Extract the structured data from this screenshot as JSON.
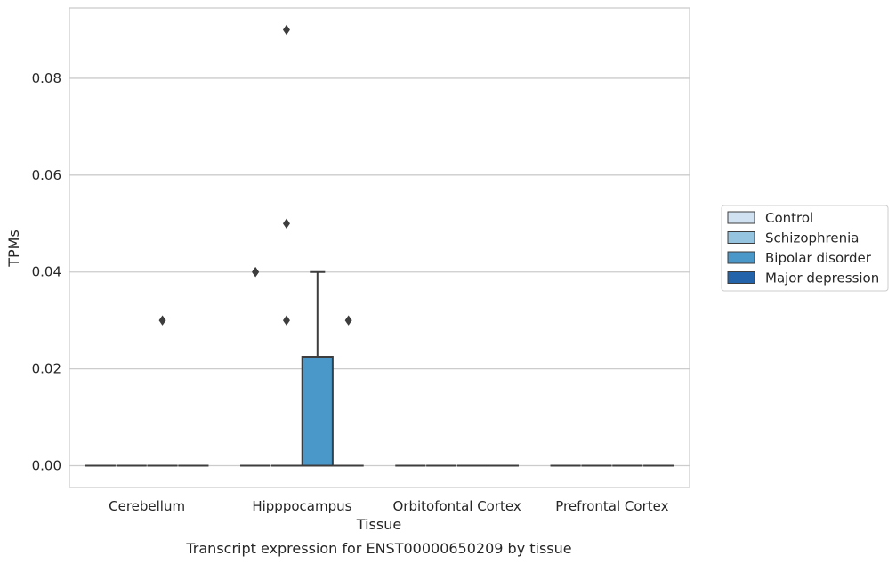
{
  "chart_data": {
    "type": "box",
    "caption": "Transcript expression for ENST00000650209 by tissue",
    "xlabel": "Tissue",
    "ylabel": "TPMs",
    "ylim": [
      -0.0045,
      0.0945
    ],
    "yticks": [
      0.0,
      0.02,
      0.04,
      0.06,
      0.08
    ],
    "ytick_labels": [
      "0.00",
      "0.02",
      "0.04",
      "0.06",
      "0.08"
    ],
    "grid": true,
    "legend_position": "right",
    "categories": [
      "Cerebellum",
      "Hipppocampus",
      "Orbitofontal Cortex",
      "Prefrontal Cortex"
    ],
    "groups": [
      {
        "name": "Control",
        "color": "#d0e1f2"
      },
      {
        "name": "Schizophrenia",
        "color": "#94c4df"
      },
      {
        "name": "Bipolar disorder",
        "color": "#4a98c9"
      },
      {
        "name": "Major depression",
        "color": "#2363aa"
      }
    ],
    "boxes": [
      {
        "category": 0,
        "group": 0,
        "q1": 0,
        "median": 0,
        "q3": 0,
        "whislo": 0,
        "whishi": 0,
        "fliers": []
      },
      {
        "category": 0,
        "group": 1,
        "q1": 0,
        "median": 0,
        "q3": 0,
        "whislo": 0,
        "whishi": 0,
        "fliers": []
      },
      {
        "category": 0,
        "group": 2,
        "q1": 0,
        "median": 0,
        "q3": 0,
        "whislo": 0,
        "whishi": 0,
        "fliers": [
          0.03
        ]
      },
      {
        "category": 0,
        "group": 3,
        "q1": 0,
        "median": 0,
        "q3": 0,
        "whislo": 0,
        "whishi": 0,
        "fliers": []
      },
      {
        "category": 1,
        "group": 0,
        "q1": 0,
        "median": 0,
        "q3": 0,
        "whislo": 0,
        "whishi": 0,
        "fliers": [
          0.04,
          0.04
        ]
      },
      {
        "category": 1,
        "group": 1,
        "q1": 0,
        "median": 0,
        "q3": 0,
        "whislo": 0,
        "whishi": 0,
        "fliers": [
          0.03,
          0.05,
          0.09
        ]
      },
      {
        "category": 1,
        "group": 2,
        "q1": 0,
        "median": 0,
        "q3": 0.0225,
        "whislo": 0,
        "whishi": 0.04,
        "fliers": []
      },
      {
        "category": 1,
        "group": 3,
        "q1": 0,
        "median": 0,
        "q3": 0,
        "whislo": 0,
        "whishi": 0,
        "fliers": [
          0.03
        ]
      },
      {
        "category": 2,
        "group": 0,
        "q1": 0,
        "median": 0,
        "q3": 0,
        "whislo": 0,
        "whishi": 0,
        "fliers": []
      },
      {
        "category": 2,
        "group": 1,
        "q1": 0,
        "median": 0,
        "q3": 0,
        "whislo": 0,
        "whishi": 0,
        "fliers": []
      },
      {
        "category": 2,
        "group": 2,
        "q1": 0,
        "median": 0,
        "q3": 0,
        "whislo": 0,
        "whishi": 0,
        "fliers": []
      },
      {
        "category": 2,
        "group": 3,
        "q1": 0,
        "median": 0,
        "q3": 0,
        "whislo": 0,
        "whishi": 0,
        "fliers": []
      },
      {
        "category": 3,
        "group": 0,
        "q1": 0,
        "median": 0,
        "q3": 0,
        "whislo": 0,
        "whishi": 0,
        "fliers": []
      },
      {
        "category": 3,
        "group": 1,
        "q1": 0,
        "median": 0,
        "q3": 0,
        "whislo": 0,
        "whishi": 0,
        "fliers": []
      },
      {
        "category": 3,
        "group": 2,
        "q1": 0,
        "median": 0,
        "q3": 0,
        "whislo": 0,
        "whishi": 0,
        "fliers": []
      },
      {
        "category": 3,
        "group": 3,
        "q1": 0,
        "median": 0,
        "q3": 0,
        "whislo": 0,
        "whishi": 0,
        "fliers": []
      }
    ]
  }
}
